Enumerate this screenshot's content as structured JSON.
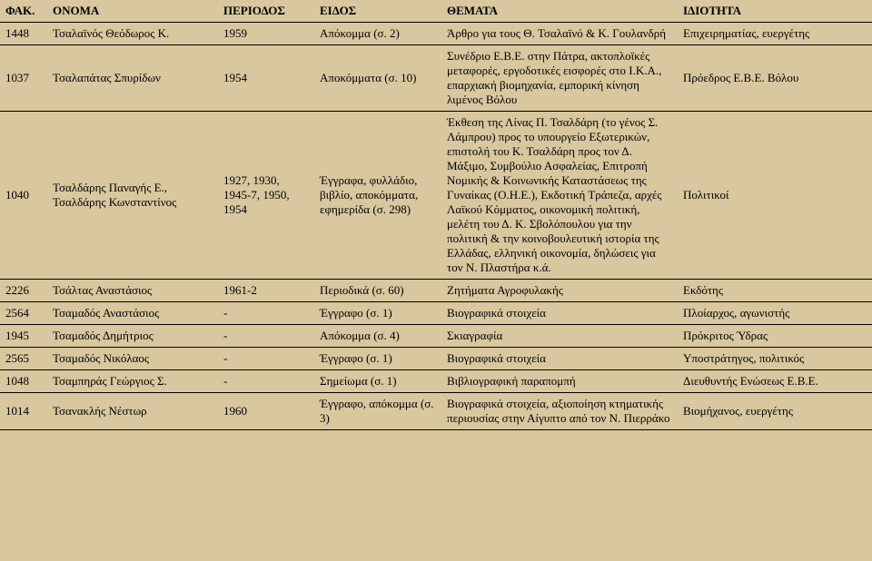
{
  "headers": [
    "ΦΑΚ.",
    "ΟΝΟΜΑ",
    "ΠΕΡΙΟΔΟΣ",
    "ΕΙΔΟΣ",
    "ΘΕΜΑΤΑ",
    "ΙΔΙΟΤΗΤΑ"
  ],
  "rows": [
    {
      "fak": "1448",
      "onoma": "Τσαλαϊνός Θεόδωρος Κ.",
      "periodos": "1959",
      "eidos": "Απόκομμα (σ. 2)",
      "themata": "Άρθρο για τους Θ. Τσαλαϊνό & Κ. Γουλανδρή",
      "idiotita": "Επιχειρηματίας, ευεργέτης"
    },
    {
      "fak": "1037",
      "onoma": "Τσαλαπάτας Σπυρίδων",
      "periodos": "1954",
      "eidos": "Αποκόμματα (σ. 10)",
      "themata": "Συνέδριο Ε.Β.Ε. στην Πάτρα, ακτοπλοϊκές μεταφορές, εργοδοτικές εισφορές στο Ι.Κ.Α., επαρχιακή βιομηχανία, εμπορική κίνηση λιμένος Βόλου",
      "idiotita": "Πρόεδρος Ε.Β.Ε. Βόλου"
    },
    {
      "fak": "1040",
      "onoma": "Τσαλδάρης Παναγής Ε., Τσαλδάρης Κωνσταντίνος",
      "periodos": "1927, 1930, 1945-7, 1950, 1954",
      "eidos": "Έγγραφα, φυλλάδιο, βιβλίο, αποκόμματα, εφημερίδα (σ. 298)",
      "themata": "Έκθεση της Λίνας Π. Τσαλδάρη (το γένος Σ. Λάμπρου) προς το υπουργείο Εξωτερικών, επιστολή του Κ. Τσαλδάρη προς τον Δ. Μάξιμο, Συμβούλιο Ασφαλείας, Επιτροπή Νομικής & Κοινωνικής Καταστάσεως της Γυναίκας (Ο.Η.Ε.), Εκδοτική Τράπεζα, αρχές Λαϊκού Κόμματος, οικονομική πολιτική, μελέτη του Δ. Κ. Σβολόπουλου για την πολιτική & την κοινοβουλευτική ιστορία της Ελλάδας, ελληνική οικονομία, δηλώσεις για τον Ν. Πλαστήρα κ.ά.",
      "idiotita": "Πολιτικοί"
    },
    {
      "fak": "2226",
      "onoma": "Τσάλτας Αναστάσιος",
      "periodos": "1961-2",
      "eidos": "Περιοδικά (σ. 60)",
      "themata": "Ζητήματα Αγροφυλακής",
      "idiotita": "Εκδότης"
    },
    {
      "fak": "2564",
      "onoma": "Τσαμαδός Αναστάσιος",
      "periodos": "-",
      "eidos": "Έγγραφο (σ. 1)",
      "themata": "Βιογραφικά στοιχεία",
      "idiotita": "Πλοίαρχος, αγωνιστής"
    },
    {
      "fak": "1945",
      "onoma": "Τσαμαδός Δημήτριος",
      "periodos": "-",
      "eidos": "Απόκομμα (σ. 4)",
      "themata": "Σκιαγραφία",
      "idiotita": "Πρόκριτος Ύδρας"
    },
    {
      "fak": "2565",
      "onoma": "Τσαμαδός Νικόλαος",
      "periodos": "-",
      "eidos": "Έγγραφο (σ. 1)",
      "themata": "Βιογραφικά στοιχεία",
      "idiotita": "Υποστράτηγος, πολιτικός"
    },
    {
      "fak": "1048",
      "onoma": "Τσαμπηράς Γεώργιος Σ.",
      "periodos": "-",
      "eidos": "Σημείωμα (σ. 1)",
      "themata": "Βιβλιογραφική παραπομπή",
      "idiotita": "Διευθυντής Ενώσεως Ε.Β.Ε."
    },
    {
      "fak": "1014",
      "onoma": "Τσανακλής Νέστωρ",
      "periodos": "1960",
      "eidos": "Έγγραφο, απόκομμα (σ. 3)",
      "themata": "Βιογραφικά στοιχεία, αξιοποίηση κτηματικής περιουσίας στην Αίγυπτο από τον Ν. Πιερράκο",
      "idiotita": "Βιομήχανος, ευεργέτης"
    }
  ]
}
